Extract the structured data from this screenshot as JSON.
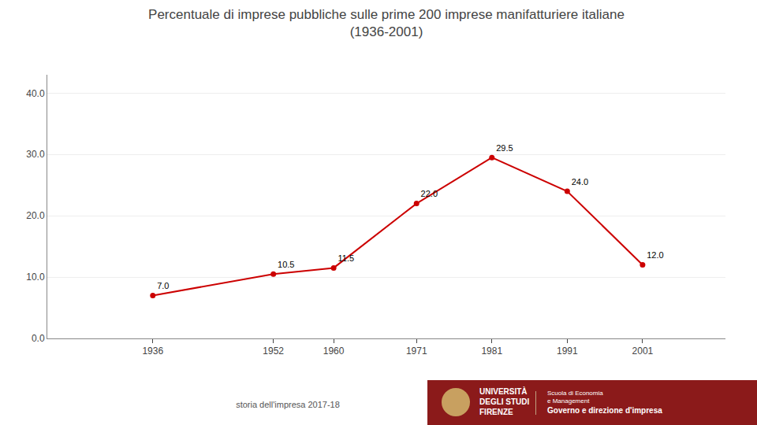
{
  "chart_data": {
    "type": "line",
    "title": "Percentuale di imprese pubbliche sulle prime 200 imprese manifatturiere italiane",
    "subtitle": "(1936-2001)",
    "x": [
      1936,
      1952,
      1960,
      1971,
      1981,
      1991,
      2001
    ],
    "values": [
      7.0,
      10.5,
      11.5,
      22.0,
      29.5,
      24.0,
      12.0
    ],
    "value_labels": [
      "7.0",
      "10.5",
      "11.5",
      "22.0",
      "29.5",
      "24.0",
      "12.0"
    ],
    "data_labels": true,
    "color": "#cc0000",
    "marker": "circle",
    "xlim": [
      1922,
      2012
    ],
    "xticks": [
      1936,
      1952,
      1960,
      1971,
      1981,
      1991,
      2001
    ],
    "ylim": [
      0,
      43
    ],
    "yticks": [
      {
        "value": 0.0,
        "label": "0.0"
      },
      {
        "value": 10.0,
        "label": "10.0"
      },
      {
        "value": 20.0,
        "label": "20.0"
      },
      {
        "value": 30.0,
        "label": "30.0"
      },
      {
        "value": 40.0,
        "label": "40.0"
      }
    ],
    "grid": true,
    "annotations": [
      "storia dell'impresa 2017-18",
      "UNIVERSITÀ",
      "DEGLI STUDI",
      "FIRENZE",
      "Scuola di Economia",
      "e Management",
      "Governo e direzione d'impresa"
    ]
  }
}
